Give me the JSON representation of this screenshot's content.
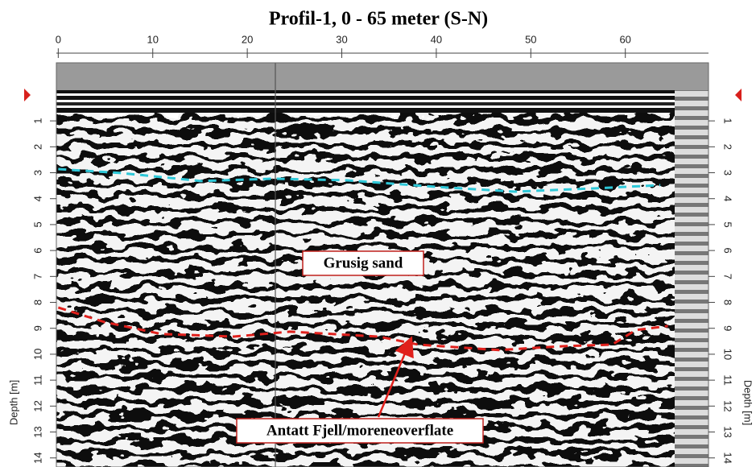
{
  "chart_data": {
    "type": "radargram",
    "title": "Profil-1, 0 - 65 meter (S-N)",
    "ylabel": "Depth [m]",
    "xlim": [
      -0.2,
      68.8
    ],
    "xticks": [
      0,
      10,
      20,
      30,
      40,
      50,
      60
    ],
    "ylim": [
      14.35,
      -1.24
    ],
    "yticks": [
      1,
      2,
      3,
      4,
      5,
      6,
      7,
      8,
      9,
      10,
      11,
      12,
      13,
      14
    ],
    "series": [
      {
        "color": "#2ec8d8",
        "x": [
          0,
          6.6,
          15.1,
          22.8,
          30.5,
          39.8,
          48.3,
          56.9,
          63.7
        ],
        "values": [
          2.86,
          3.01,
          3.32,
          3.23,
          3.29,
          3.54,
          3.73,
          3.6,
          3.48
        ]
      },
      {
        "color": "#e0201c",
        "x": [
          0,
          4.9,
          10.9,
          18.6,
          24.5,
          33.9,
          38.1,
          46.6,
          53.4,
          58.6,
          61.1,
          64.5
        ],
        "values": [
          8.2,
          8.76,
          9.22,
          9.32,
          9.13,
          9.32,
          9.63,
          9.84,
          9.69,
          9.63,
          9.07,
          8.91
        ]
      }
    ],
    "annotations": [
      "Grusig sand",
      "Antatt Fjell/moreneoverflate"
    ]
  }
}
